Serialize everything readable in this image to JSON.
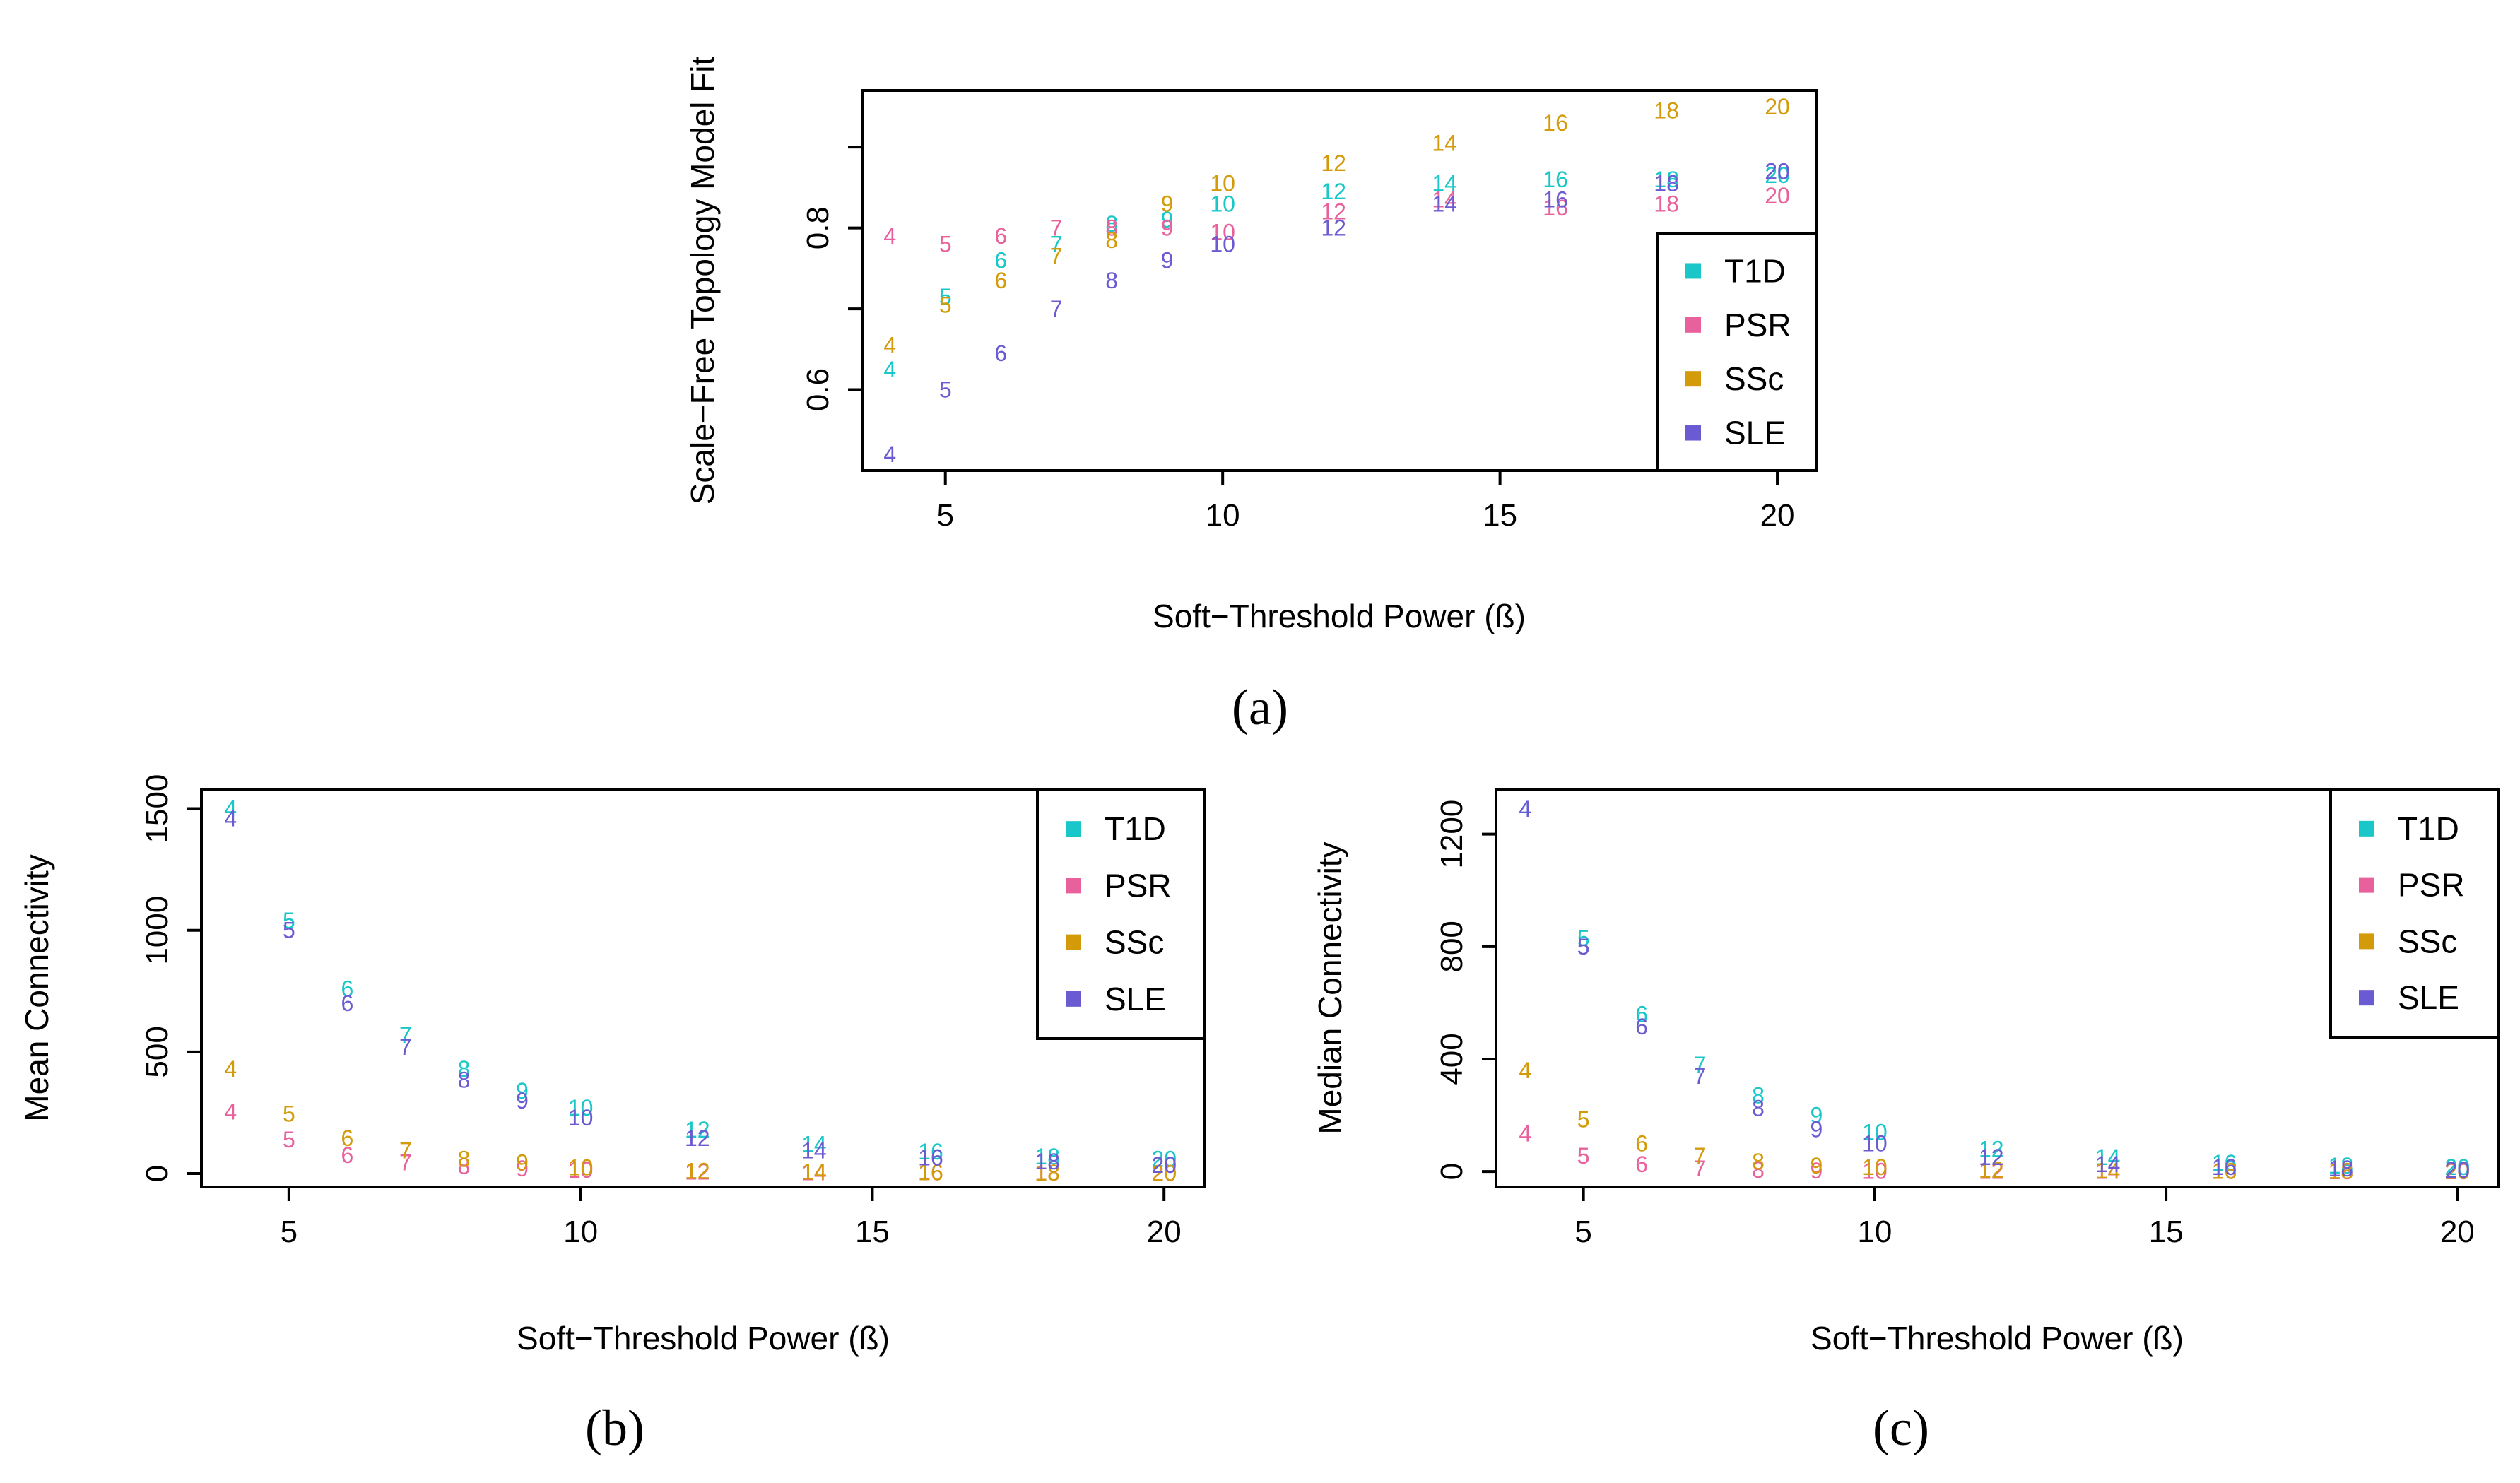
{
  "colors": {
    "T1D": "#19c7c9",
    "PSR": "#e8619c",
    "SSc": "#d39a09",
    "SLE": "#6b5bd2"
  },
  "chart_data": [
    {
      "panel": "(a)",
      "type": "scatter",
      "xlabel": "Soft−Threshold Power (ß)",
      "ylabel": "Scale−Free Topology Model Fit",
      "xlim": [
        3.5,
        20.7
      ],
      "ylim": [
        0.5,
        0.97
      ],
      "xticks": [
        5,
        10,
        15,
        20
      ],
      "yticks": [
        0.6,
        0.7,
        0.8,
        0.9
      ],
      "ytick_labels": [
        "0.6",
        "",
        "0.8",
        ""
      ],
      "legend": [
        "T1D",
        "PSR",
        "SSc",
        "SLE"
      ],
      "legend_position": "bottom-right",
      "x": [
        4,
        5,
        6,
        7,
        8,
        9,
        10,
        12,
        14,
        16,
        18,
        20
      ],
      "series": [
        {
          "name": "T1D",
          "values": [
            0.625,
            0.715,
            0.76,
            0.78,
            0.805,
            0.81,
            0.83,
            0.845,
            0.855,
            0.86,
            0.86,
            0.865
          ]
        },
        {
          "name": "PSR",
          "values": [
            0.79,
            0.78,
            0.79,
            0.8,
            0.8,
            0.8,
            0.795,
            0.82,
            0.835,
            0.825,
            0.83,
            0.84
          ]
        },
        {
          "name": "SSc",
          "values": [
            0.655,
            0.705,
            0.735,
            0.765,
            0.785,
            0.83,
            0.855,
            0.88,
            0.905,
            0.93,
            0.945,
            0.95
          ]
        },
        {
          "name": "SLE",
          "values": [
            0.52,
            0.6,
            0.645,
            0.7,
            0.735,
            0.76,
            0.78,
            0.8,
            0.83,
            0.835,
            0.855,
            0.87
          ]
        }
      ]
    },
    {
      "panel": "(b)",
      "type": "scatter",
      "xlabel": "Soft−Threshold Power (ß)",
      "ylabel": "Mean Connectivity",
      "xlim": [
        3.5,
        20.7
      ],
      "ylim": [
        -55,
        1580
      ],
      "xticks": [
        5,
        10,
        15,
        20
      ],
      "yticks": [
        0,
        500,
        1000,
        1500
      ],
      "ytick_labels": [
        "0",
        "500",
        "1000",
        "1500"
      ],
      "legend": [
        "T1D",
        "PSR",
        "SSc",
        "SLE"
      ],
      "legend_position": "top-right",
      "x": [
        4,
        5,
        6,
        7,
        8,
        9,
        10,
        12,
        14,
        16,
        18,
        20
      ],
      "series": [
        {
          "name": "T1D",
          "values": [
            1500,
            1040,
            760,
            570,
            430,
            340,
            270,
            180,
            120,
            90,
            70,
            60
          ]
        },
        {
          "name": "PSR",
          "values": [
            255,
            140,
            75,
            45,
            30,
            20,
            15,
            8,
            5,
            4,
            3,
            2
          ]
        },
        {
          "name": "SSc",
          "values": [
            430,
            245,
            145,
            95,
            60,
            45,
            25,
            10,
            8,
            5,
            3,
            2
          ]
        },
        {
          "name": "SLE",
          "values": [
            1460,
            1000,
            700,
            520,
            385,
            300,
            230,
            145,
            95,
            65,
            50,
            35
          ]
        }
      ]
    },
    {
      "panel": "(c)",
      "type": "scatter",
      "xlabel": "Soft−Threshold Power (ß)",
      "ylabel": "Median Connectivity",
      "xlim": [
        3.5,
        20.7
      ],
      "ylim": [
        -55,
        1360
      ],
      "xticks": [
        5,
        10,
        15,
        20
      ],
      "yticks": [
        0,
        400,
        800,
        1200
      ],
      "ytick_labels": [
        "0",
        "400",
        "800",
        "1200"
      ],
      "legend": [
        "T1D",
        "PSR",
        "SSc",
        "SLE"
      ],
      "legend_position": "top-right",
      "x": [
        4,
        5,
        6,
        7,
        8,
        9,
        10,
        12,
        14,
        16,
        18,
        20
      ],
      "series": [
        {
          "name": "T1D",
          "values": [
            1290,
            830,
            560,
            380,
            270,
            200,
            140,
            80,
            50,
            30,
            20,
            15
          ]
        },
        {
          "name": "PSR",
          "values": [
            135,
            55,
            25,
            10,
            5,
            3,
            2,
            1,
            1,
            1,
            0,
            0
          ]
        },
        {
          "name": "SSc",
          "values": [
            360,
            185,
            100,
            55,
            35,
            20,
            15,
            5,
            3,
            2,
            1,
            1
          ]
        },
        {
          "name": "SLE",
          "values": [
            1290,
            800,
            515,
            340,
            225,
            150,
            100,
            50,
            25,
            15,
            10,
            5
          ]
        }
      ]
    }
  ]
}
